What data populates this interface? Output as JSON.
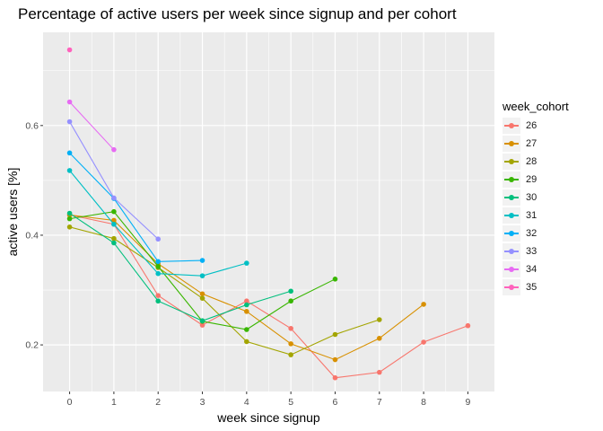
{
  "chart_data": {
    "type": "line",
    "title": "Percentage of active users per week since signup and per cohort",
    "xlabel": "week since signup",
    "ylabel": "active users [%]",
    "xlim": [
      -0.6,
      9.6
    ],
    "ylim": [
      0.115,
      0.77
    ],
    "x_ticks": [
      0,
      1,
      2,
      3,
      4,
      5,
      6,
      7,
      8,
      9
    ],
    "x_tick_labels": [
      "0",
      "1",
      "2",
      "3",
      "4",
      "5",
      "6",
      "7",
      "8",
      "9"
    ],
    "y_ticks": [
      0.2,
      0.4,
      0.6
    ],
    "y_tick_labels": [
      "0.2",
      "0.4",
      "0.6"
    ],
    "y_minor_ticks": [
      0.3,
      0.5,
      0.7
    ],
    "grid": true,
    "panel_background": "#ebebeb",
    "legend": {
      "title": "week_cohort",
      "position": "right"
    },
    "series": [
      {
        "name": "26",
        "color": "#F8766D",
        "x": [
          0,
          1,
          2,
          3,
          4,
          5,
          6,
          7,
          8,
          9
        ],
        "values": [
          0.437,
          0.42,
          0.29,
          0.236,
          0.28,
          0.23,
          0.14,
          0.15,
          0.205,
          0.235
        ]
      },
      {
        "name": "27",
        "color": "#D89000",
        "x": [
          0,
          1,
          2,
          3,
          4,
          5,
          6,
          7,
          8
        ],
        "values": [
          0.437,
          0.427,
          0.348,
          0.293,
          0.261,
          0.202,
          0.173,
          0.212,
          0.274
        ]
      },
      {
        "name": "28",
        "color": "#A3A500",
        "x": [
          0,
          1,
          2,
          3,
          4,
          5,
          6,
          7
        ],
        "values": [
          0.415,
          0.394,
          0.341,
          0.285,
          0.206,
          0.182,
          0.219,
          0.246
        ]
      },
      {
        "name": "29",
        "color": "#39B600",
        "x": [
          0,
          1,
          2,
          3,
          4,
          5,
          6
        ],
        "values": [
          0.43,
          0.443,
          0.343,
          0.243,
          0.228,
          0.28,
          0.32
        ]
      },
      {
        "name": "30",
        "color": "#00BF7D",
        "x": [
          0,
          1,
          2,
          3,
          4,
          5
        ],
        "values": [
          0.44,
          0.386,
          0.28,
          0.244,
          0.273,
          0.298
        ]
      },
      {
        "name": "31",
        "color": "#00BFC4",
        "x": [
          0,
          1,
          2,
          3,
          4
        ],
        "values": [
          0.518,
          0.42,
          0.33,
          0.326,
          0.349
        ]
      },
      {
        "name": "32",
        "color": "#00B0F6",
        "x": [
          0,
          1,
          2,
          3
        ],
        "values": [
          0.55,
          0.467,
          0.352,
          0.354
        ]
      },
      {
        "name": "33",
        "color": "#9590FF",
        "x": [
          0,
          1,
          2
        ],
        "values": [
          0.607,
          0.468,
          0.393
        ]
      },
      {
        "name": "34",
        "color": "#E76BF3",
        "x": [
          0,
          1
        ],
        "values": [
          0.643,
          0.556
        ]
      },
      {
        "name": "35",
        "color": "#FF62BC",
        "x": [
          0
        ],
        "values": [
          0.738
        ]
      }
    ]
  }
}
